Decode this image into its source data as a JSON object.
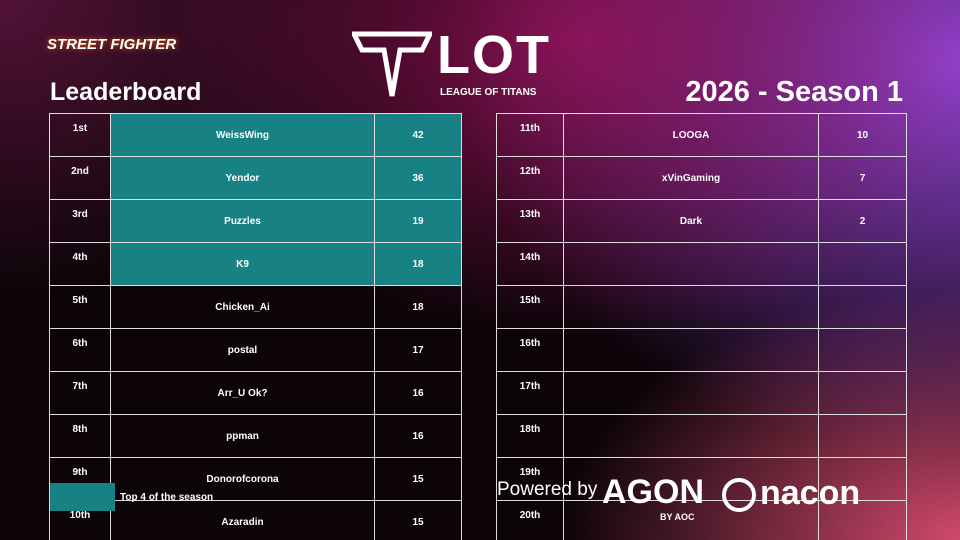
{
  "header": {
    "game_logo": "STREET FIGHTER",
    "title": "Leaderboard",
    "brand": "LOT",
    "brand_subtitle": "LEAGUE OF TITANS",
    "season": "2026 - Season 1"
  },
  "legend": {
    "color": "#178184",
    "label": "Top 4 of the season"
  },
  "table": {
    "rows": [
      {
        "rank": "1st",
        "name": "WeissWing",
        "points": 42,
        "highlight": true
      },
      {
        "rank": "2nd",
        "name": "Yendor",
        "points": 36,
        "highlight": true
      },
      {
        "rank": "3rd",
        "name": "Puzzles",
        "points": 19,
        "highlight": true
      },
      {
        "rank": "4th",
        "name": "K9",
        "points": 18,
        "highlight": true
      },
      {
        "rank": "5th",
        "name": "Chicken_Ai",
        "points": 18
      },
      {
        "rank": "6th",
        "name": "postal",
        "points": 17
      },
      {
        "rank": "7th",
        "name": "Arr_U Ok?",
        "points": 16
      },
      {
        "rank": "8th",
        "name": "ppman",
        "points": 16
      },
      {
        "rank": "9th",
        "name": "Donorofcorona",
        "points": 15
      },
      {
        "rank": "10th",
        "name": "Azaradin",
        "points": 15
      },
      {
        "rank": "11th",
        "name": "LOOGA",
        "points": 10
      },
      {
        "rank": "12th",
        "name": "xVinGaming",
        "points": 7
      },
      {
        "rank": "13th",
        "name": "Dark",
        "points": 2
      },
      {
        "rank": "14th"
      },
      {
        "rank": "15th"
      },
      {
        "rank": "16th"
      },
      {
        "rank": "17th"
      },
      {
        "rank": "18th"
      },
      {
        "rank": "19th"
      },
      {
        "rank": "20th"
      }
    ]
  },
  "footer": {
    "powered": "Powered by",
    "agon": "AGON",
    "agon_sub": "BY AOC",
    "nacon": "nacon"
  }
}
